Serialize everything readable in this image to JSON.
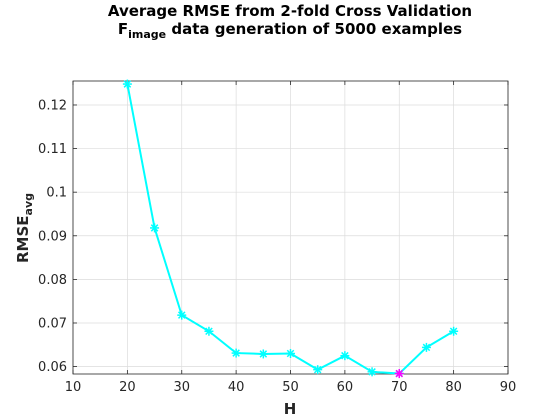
{
  "chart_data": {
    "type": "line",
    "title_line1": "Average RMSE from 2-fold Cross Validation",
    "title_line2": {
      "base": "F",
      "sub": "image",
      "rest": " data generation of 5000 examples"
    },
    "xlabel": "H",
    "ylabel": {
      "base": "RMSE",
      "sub": "avg"
    },
    "xlim": [
      10,
      90
    ],
    "ylim": [
      0.0583,
      0.1255
    ],
    "xticks": [
      10,
      20,
      30,
      40,
      50,
      60,
      70,
      80,
      90
    ],
    "yticks": [
      0.06,
      0.07,
      0.08,
      0.09,
      0.1,
      0.11,
      0.12
    ],
    "ytick_labels": [
      "0.06",
      "0.07",
      "0.08",
      "0.09",
      "0.1",
      "0.11",
      "0.12"
    ],
    "grid": true,
    "series": [
      {
        "x": [
          20,
          25,
          30,
          35,
          40,
          45,
          50,
          55,
          60,
          65,
          70,
          75,
          80
        ],
        "y": [
          0.1248,
          0.0918,
          0.0718,
          0.0681,
          0.0631,
          0.0629,
          0.063,
          0.0593,
          0.0625,
          0.0588,
          0.0584,
          0.0644,
          0.0681
        ],
        "color": "#00ffff",
        "marker": "*"
      }
    ],
    "highlight": {
      "x": 70,
      "y": 0.0584,
      "color": "#ff00ff",
      "marker": "*"
    }
  }
}
